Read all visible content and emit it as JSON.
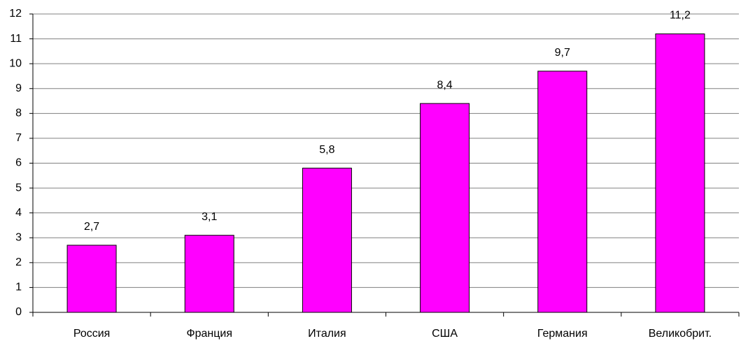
{
  "chart_data": {
    "type": "bar",
    "categories": [
      "Россия",
      "Франция",
      "Италия",
      "США",
      "Германия",
      "Великобрит."
    ],
    "values": [
      2.7,
      3.1,
      5.8,
      8.4,
      9.7,
      11.2
    ],
    "value_labels": [
      "2,7",
      "3,1",
      "5,8",
      "8,4",
      "9,7",
      "11,2"
    ],
    "color": "#ff00ff",
    "ylim": [
      0,
      12
    ],
    "yticks": [
      0,
      1,
      2,
      3,
      4,
      5,
      6,
      7,
      8,
      9,
      10,
      11,
      12
    ],
    "grid": true
  }
}
